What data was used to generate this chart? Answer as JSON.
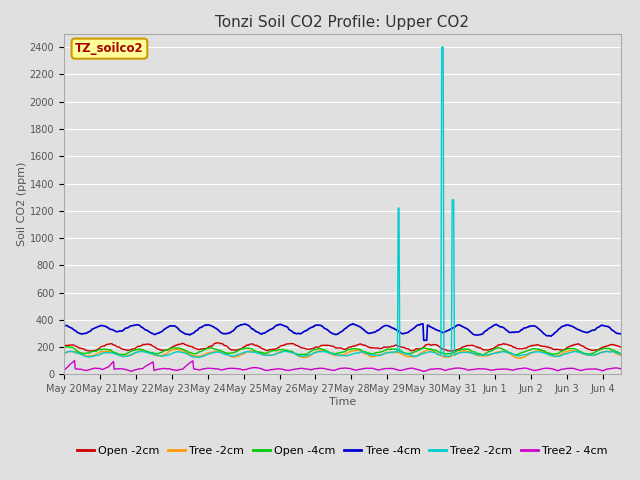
{
  "title": "Tonzi Soil CO2 Profile: Upper CO2",
  "xlabel": "Time",
  "ylabel": "Soil CO2 (ppm)",
  "ylim": [
    0,
    2500
  ],
  "yticks": [
    0,
    200,
    400,
    600,
    800,
    1000,
    1200,
    1400,
    1600,
    1800,
    2000,
    2200,
    2400
  ],
  "fig_bg_color": "#e0e0e0",
  "plot_bg_color": "#e0e0e0",
  "grid_color": "#ffffff",
  "label_box": "TZ_soilco2",
  "label_box_color": "#ffff99",
  "label_box_text_color": "#aa0000",
  "series": [
    {
      "name": "Open -2cm",
      "color": "#cc0000",
      "lw": 1.0
    },
    {
      "name": "Tree -2cm",
      "color": "#ff9900",
      "lw": 1.0
    },
    {
      "name": "Open -4cm",
      "color": "#00cc00",
      "lw": 1.0
    },
    {
      "name": "Tree -4cm",
      "color": "#0000cc",
      "lw": 1.2
    },
    {
      "name": "Tree2 -2cm",
      "color": "#00cccc",
      "lw": 1.0
    },
    {
      "name": "Tree2 - 4cm",
      "color": "#cc00cc",
      "lw": 1.0
    }
  ],
  "tick_labels": [
    "May 20",
    "May 21",
    "May 22",
    "May 23",
    "May 24",
    "May 25",
    "May 26",
    "May 27",
    "May 28",
    "May 29",
    "May 30",
    "May 31",
    "Jun 1",
    "Jun 2",
    "Jun 3",
    "Jun 4"
  ],
  "seed": 42,
  "title_fontsize": 11,
  "axis_fontsize": 8,
  "tick_fontsize": 7,
  "legend_fontsize": 8
}
